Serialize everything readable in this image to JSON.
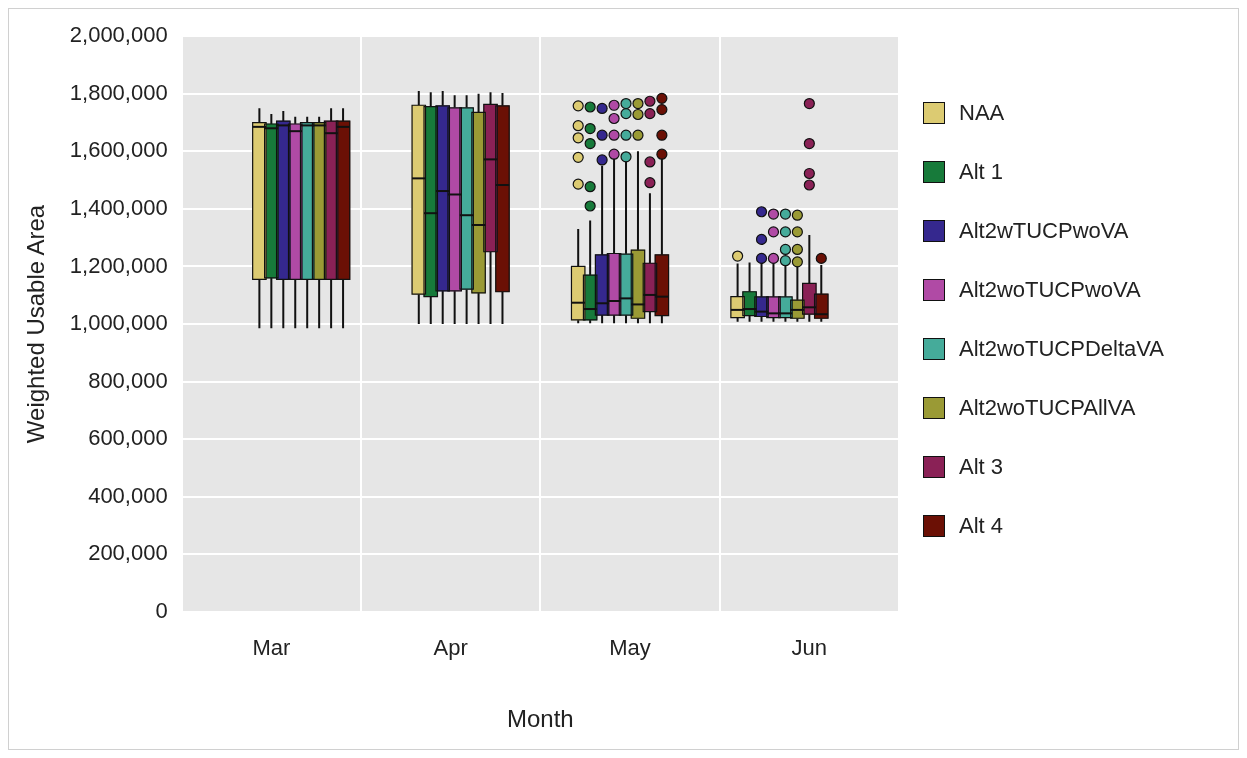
{
  "chart_data": {
    "type": "box",
    "xlabel": "Month",
    "ylabel": "Weighted Usable Area",
    "categories": [
      "Mar",
      "Apr",
      "May",
      "Jun"
    ],
    "ylim": [
      0,
      2000000
    ],
    "yticks": [
      0,
      {
        "value": 200000,
        "label": "200,000"
      },
      {
        "value": 400000,
        "label": "400,000"
      },
      {
        "value": 600000,
        "label": "600,000"
      },
      {
        "value": 800000,
        "label": "800,000"
      },
      {
        "value": 1000000,
        "label": "1,000,000"
      },
      {
        "value": 1200000,
        "label": "1,200,000"
      },
      {
        "value": 1400000,
        "label": "1,400,000"
      },
      {
        "value": 1600000,
        "label": "1,600,000"
      },
      {
        "value": 1800000,
        "label": "1,800,000"
      },
      {
        "value": 2000000,
        "label": "2,000,000"
      }
    ],
    "grid": true,
    "legend": "right",
    "marker": "circle",
    "series": [
      {
        "name": "NAA",
        "color": "#dccb72",
        "boxes": [
          {
            "low": 985000,
            "q1": 1155000,
            "median": 1685000,
            "q3": 1700000,
            "high": 1750000
          },
          {
            "low": 1000000,
            "q1": 1104000,
            "median": 1506000,
            "q3": 1760000,
            "high": 1810000
          },
          {
            "low": 1003000,
            "q1": 1014000,
            "median": 1074000,
            "q3": 1200000,
            "high": 1330000,
            "outliers": [
              1758000,
              1689000,
              1647000,
              1579000,
              1486000
            ]
          },
          {
            "low": 1008000,
            "q1": 1022000,
            "median": 1049000,
            "q3": 1095000,
            "high": 1210000,
            "outliers": [
              1236000
            ]
          }
        ]
      },
      {
        "name": "Alt 1",
        "color": "#177a3a",
        "boxes": [
          {
            "low": 985000,
            "q1": 1160000,
            "median": 1680000,
            "q3": 1695000,
            "high": 1730000
          },
          {
            "low": 1000000,
            "q1": 1095000,
            "median": 1385000,
            "q3": 1755000,
            "high": 1805000
          },
          {
            "low": 1003000,
            "q1": 1014000,
            "median": 1052000,
            "q3": 1170000,
            "high": 1360000,
            "outliers": [
              1754000,
              1679000,
              1627000,
              1477000,
              1410000
            ]
          },
          {
            "low": 1008000,
            "q1": 1029000,
            "median": 1052000,
            "q3": 1112000,
            "high": 1214000
          }
        ]
      },
      {
        "name": "Alt2wTUCPwoVA",
        "color": "#35288e",
        "boxes": [
          {
            "low": 985000,
            "q1": 1155000,
            "median": 1690000,
            "q3": 1705000,
            "high": 1740000
          },
          {
            "low": 1000000,
            "q1": 1115000,
            "median": 1462000,
            "q3": 1758000,
            "high": 1810000
          },
          {
            "low": 1003000,
            "q1": 1031000,
            "median": 1072000,
            "q3": 1240000,
            "high": 1550000,
            "outliers": [
              1749000,
              1656000,
              1570000
            ]
          },
          {
            "low": 1008000,
            "q1": 1026000,
            "median": 1043000,
            "q3": 1094000,
            "high": 1215000,
            "outliers": [
              1228000,
              1294000,
              1390000
            ]
          }
        ]
      },
      {
        "name": "Alt2woTUCPwoVA",
        "color": "#b04aa5",
        "boxes": [
          {
            "low": 985000,
            "q1": 1155000,
            "median": 1670000,
            "q3": 1695000,
            "high": 1720000
          },
          {
            "low": 1000000,
            "q1": 1115000,
            "median": 1450000,
            "q3": 1751000,
            "high": 1795000
          },
          {
            "low": 1003000,
            "q1": 1031000,
            "median": 1080000,
            "q3": 1245000,
            "high": 1575000,
            "outliers": [
              1760000,
              1714000,
              1656000,
              1590000
            ]
          },
          {
            "low": 1008000,
            "q1": 1022000,
            "median": 1037000,
            "q3": 1094000,
            "high": 1215000,
            "outliers": [
              1228000,
              1320000,
              1382000
            ]
          }
        ]
      },
      {
        "name": "Alt2woTUCPDeltaVA",
        "color": "#45ab9a",
        "boxes": [
          {
            "low": 985000,
            "q1": 1155000,
            "median": 1690000,
            "q3": 1700000,
            "high": 1720000
          },
          {
            "low": 1000000,
            "q1": 1121000,
            "median": 1378000,
            "q3": 1751000,
            "high": 1795000
          },
          {
            "low": 1003000,
            "q1": 1031000,
            "median": 1089000,
            "q3": 1243000,
            "high": 1570000,
            "outliers": [
              1766000,
              1731000,
              1656000,
              1581000
            ]
          },
          {
            "low": 1008000,
            "q1": 1022000,
            "median": 1037000,
            "q3": 1094000,
            "high": 1205000,
            "outliers": [
              1220000,
              1259000,
              1320000,
              1382000
            ]
          }
        ]
      },
      {
        "name": "Alt2woTUCPAllVA",
        "color": "#9a9a35",
        "boxes": [
          {
            "low": 985000,
            "q1": 1155000,
            "median": 1690000,
            "q3": 1700000,
            "high": 1720000
          },
          {
            "low": 1000000,
            "q1": 1108000,
            "median": 1344000,
            "q3": 1735000,
            "high": 1800000
          },
          {
            "low": 1003000,
            "q1": 1020000,
            "median": 1068000,
            "q3": 1257000,
            "high": 1600000,
            "outliers": [
              1766000,
              1728000,
              1656000
            ]
          },
          {
            "low": 1008000,
            "q1": 1020000,
            "median": 1049000,
            "q3": 1083000,
            "high": 1205000,
            "outliers": [
              1216000,
              1259000,
              1320000,
              1378000
            ]
          }
        ]
      },
      {
        "name": "Alt 3",
        "color": "#8a2156",
        "boxes": [
          {
            "low": 985000,
            "q1": 1155000,
            "median": 1663000,
            "q3": 1705000,
            "high": 1750000
          },
          {
            "low": 1000000,
            "q1": 1251000,
            "median": 1572000,
            "q3": 1763000,
            "high": 1805000
          },
          {
            "low": 1003000,
            "q1": 1043000,
            "median": 1101000,
            "q3": 1211000,
            "high": 1454000,
            "outliers": [
              1774000,
              1731000,
              1563000,
              1491000
            ]
          },
          {
            "low": 1008000,
            "q1": 1034000,
            "median": 1058000,
            "q3": 1141000,
            "high": 1309000,
            "outliers": [
              1766000,
              1627000,
              1523000,
              1483000
            ]
          }
        ]
      },
      {
        "name": "Alt 4",
        "color": "#6b1005",
        "boxes": [
          {
            "low": 985000,
            "q1": 1155000,
            "median": 1685000,
            "q3": 1705000,
            "high": 1750000
          },
          {
            "low": 1000000,
            "q1": 1112000,
            "median": 1483000,
            "q3": 1758000,
            "high": 1803000
          },
          {
            "low": 1003000,
            "q1": 1029000,
            "median": 1095000,
            "q3": 1240000,
            "high": 1575000,
            "outliers": [
              1784000,
              1745000,
              1656000,
              1590000
            ]
          },
          {
            "low": 1008000,
            "q1": 1020000,
            "median": 1034000,
            "q3": 1104000,
            "high": 1205000,
            "outliers": [
              1228000
            ]
          }
        ]
      }
    ]
  }
}
